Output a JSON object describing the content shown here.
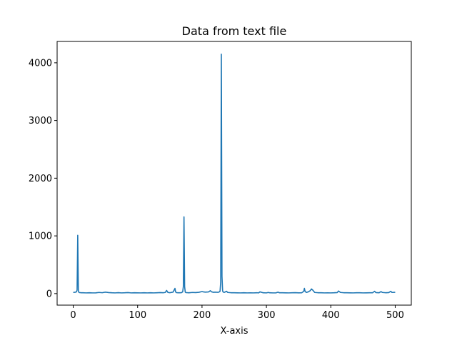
{
  "chart_data": {
    "type": "line",
    "title": "Data from text file",
    "xlabel": "X-axis",
    "ylabel": "",
    "xlim": [
      -25,
      525
    ],
    "ylim": [
      -200,
      4370
    ],
    "xticks": [
      0,
      100,
      200,
      300,
      400,
      500
    ],
    "yticks": [
      0,
      1000,
      2000,
      3000,
      4000
    ],
    "grid": false,
    "series": [
      {
        "color": "#1f77b4",
        "x": [
          0,
          2,
          4,
          5,
          6,
          7,
          8,
          9,
          10,
          12,
          15,
          20,
          25,
          30,
          35,
          40,
          45,
          50,
          55,
          60,
          65,
          70,
          75,
          80,
          85,
          90,
          95,
          100,
          105,
          110,
          115,
          120,
          125,
          130,
          135,
          140,
          143,
          145,
          147,
          150,
          155,
          158,
          159,
          160,
          162,
          165,
          168,
          170,
          171,
          172,
          173,
          174,
          175,
          178,
          180,
          185,
          190,
          195,
          200,
          202,
          205,
          210,
          213,
          215,
          218,
          220,
          225,
          227,
          228,
          229,
          230,
          231,
          232,
          233,
          235,
          238,
          240,
          245,
          250,
          255,
          260,
          265,
          270,
          275,
          280,
          285,
          288,
          290,
          295,
          300,
          303,
          305,
          310,
          315,
          318,
          320,
          325,
          330,
          335,
          340,
          345,
          350,
          355,
          358,
          359,
          360,
          362,
          365,
          368,
          370,
          372,
          375,
          380,
          385,
          390,
          395,
          400,
          405,
          410,
          412,
          415,
          420,
          425,
          430,
          435,
          440,
          445,
          450,
          455,
          460,
          465,
          468,
          470,
          475,
          478,
          480,
          485,
          490,
          493,
          495,
          500
        ],
        "y": [
          20,
          22,
          25,
          30,
          60,
          1010,
          40,
          20,
          18,
          15,
          14,
          12,
          14,
          12,
          13,
          20,
          15,
          25,
          18,
          14,
          12,
          16,
          12,
          14,
          18,
          12,
          14,
          13,
          12,
          15,
          12,
          14,
          12,
          15,
          18,
          15,
          20,
          55,
          20,
          15,
          25,
          90,
          30,
          18,
          15,
          14,
          16,
          30,
          120,
          1330,
          120,
          25,
          18,
          15,
          14,
          20,
          18,
          22,
          35,
          30,
          25,
          28,
          50,
          30,
          22,
          25,
          22,
          30,
          40,
          200,
          4150,
          300,
          45,
          25,
          22,
          40,
          20,
          15,
          14,
          13,
          12,
          14,
          12,
          13,
          12,
          15,
          12,
          30,
          14,
          12,
          20,
          14,
          12,
          13,
          25,
          15,
          14,
          13,
          12,
          14,
          16,
          13,
          15,
          40,
          90,
          40,
          20,
          30,
          50,
          80,
          60,
          20,
          15,
          14,
          12,
          13,
          12,
          14,
          18,
          45,
          20,
          15,
          14,
          13,
          12,
          15,
          14,
          12,
          13,
          14,
          15,
          40,
          18,
          15,
          35,
          20,
          15,
          18,
          40,
          20,
          22
        ]
      }
    ]
  }
}
